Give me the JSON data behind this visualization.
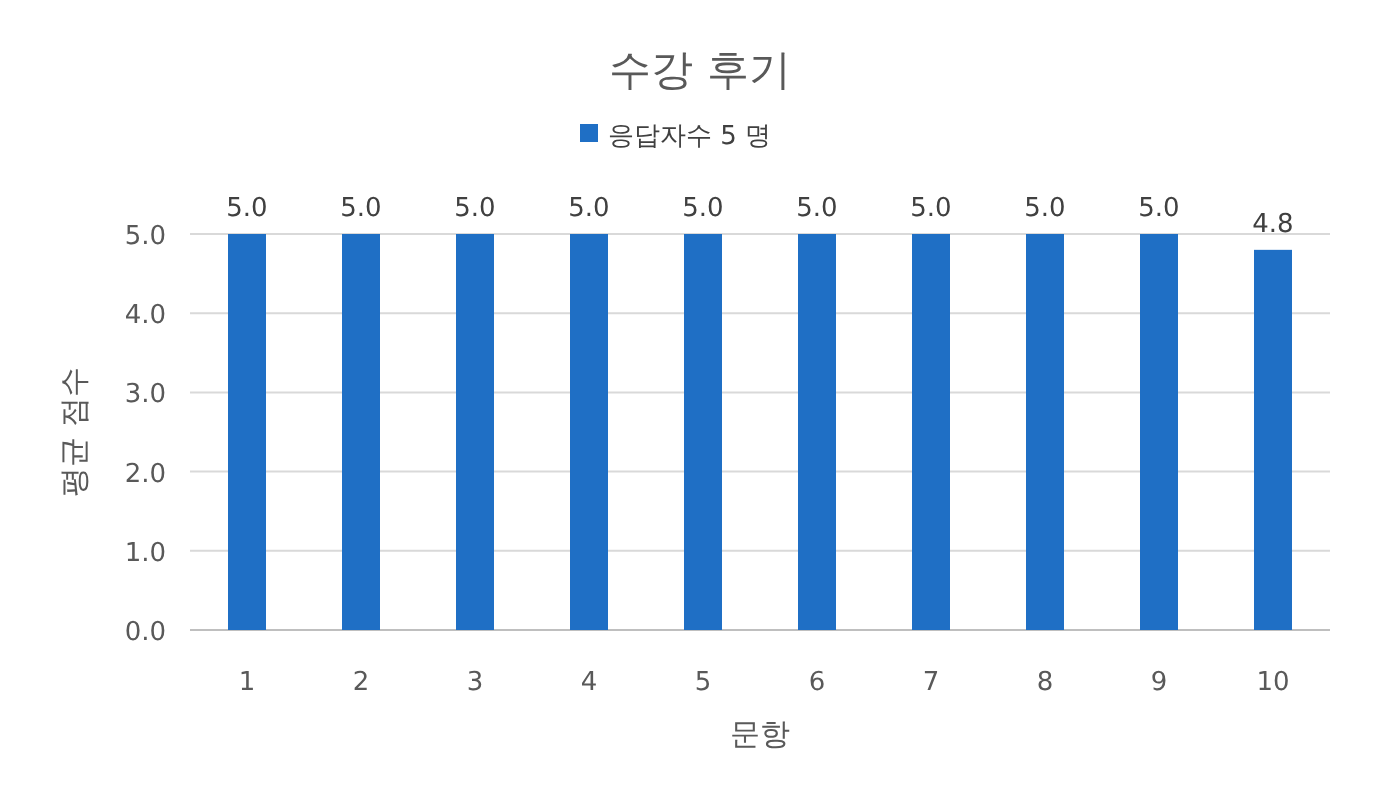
{
  "chart_data": {
    "type": "bar",
    "title": "수강 후기",
    "xlabel": "문항",
    "ylabel": "평균 점수",
    "categories": [
      "1",
      "2",
      "3",
      "4",
      "5",
      "6",
      "7",
      "8",
      "9",
      "10"
    ],
    "series": [
      {
        "name": "응답자수 5 명",
        "color": "#1f6fc5",
        "values": [
          5.0,
          5.0,
          5.0,
          5.0,
          5.0,
          5.0,
          5.0,
          5.0,
          5.0,
          4.8
        ],
        "value_labels": [
          "5.0",
          "5.0",
          "5.0",
          "5.0",
          "5.0",
          "5.0",
          "5.0",
          "5.0",
          "5.0",
          "4.8"
        ]
      }
    ],
    "ylim": [
      0,
      5
    ],
    "yticks": [
      {
        "value": 0,
        "label": "0.0"
      },
      {
        "value": 1,
        "label": "1.0"
      },
      {
        "value": 2,
        "label": "2.0"
      },
      {
        "value": 3,
        "label": "3.0"
      },
      {
        "value": 4,
        "label": "4.0"
      },
      {
        "value": 5,
        "label": "5.0"
      }
    ],
    "grid": "y",
    "legend": "top"
  }
}
